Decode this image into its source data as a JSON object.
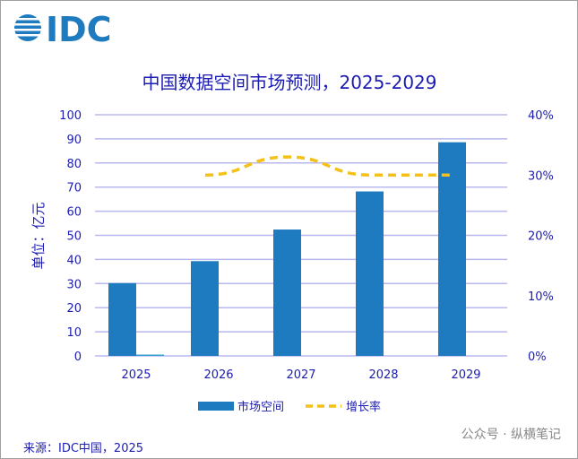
{
  "logo": "IDC",
  "chart_data": {
    "type": "bar",
    "title": "中国数据空间市场预测，2025-2029",
    "ylabel": "单位：亿元",
    "categories": [
      "2025",
      "2026",
      "2027",
      "2028",
      "2029"
    ],
    "ylim": [
      0,
      100
    ],
    "yticks": [
      "0",
      "10",
      "20",
      "30",
      "40",
      "50",
      "60",
      "70",
      "80",
      "90",
      "100"
    ],
    "y2lim": [
      0,
      40
    ],
    "y2ticks": [
      "0%",
      "10%",
      "20%",
      "30%",
      "40%"
    ],
    "series": [
      {
        "name": "市场空间",
        "type": "bar",
        "axis": "left",
        "color": "#1f7bbf",
        "values": [
          30.2,
          39.3,
          52.4,
          68.2,
          88.6
        ]
      },
      {
        "name": "增长率",
        "type": "line",
        "style": "dashed",
        "axis": "right",
        "color": "#f5c118",
        "values": [
          null,
          30,
          33,
          30,
          30
        ]
      }
    ],
    "legend": "bottom",
    "grid": true
  },
  "source": "来源：IDC中国，2025",
  "watermark": "公众号 · 纵横笔记"
}
